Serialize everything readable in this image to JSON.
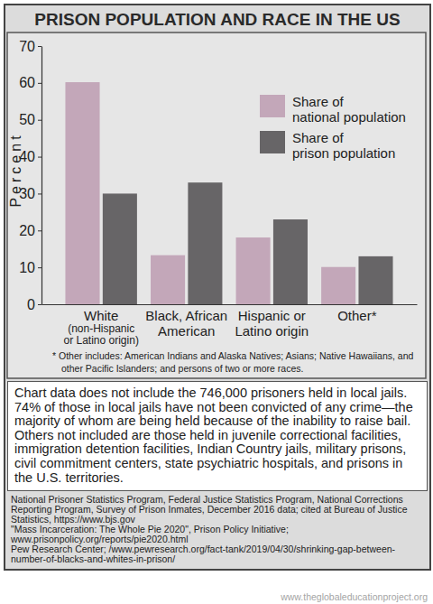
{
  "chart_data": {
    "type": "bar",
    "title": "PRISON POPULATION AND RACE IN THE US",
    "categories": [
      "White",
      "Black, African American",
      "Hispanic or Latino origin",
      "Other*"
    ],
    "category_subtitles": [
      "(non-Hispanic or Latino origin)",
      null,
      null,
      null
    ],
    "series": [
      {
        "name": "Share of national population",
        "color": "#c3a7b9",
        "values": [
          60.2,
          13.3,
          18.1,
          10.1
        ]
      },
      {
        "name": "Share of prison population",
        "color": "#676567",
        "values": [
          30,
          33,
          23,
          13
        ]
      }
    ],
    "y_label": "Percent",
    "ylim": [
      0,
      70
    ],
    "yticks": [
      0,
      10,
      20,
      30,
      40,
      50,
      60,
      70
    ],
    "grid": false,
    "legend": "top-right",
    "footnote": "* Other includes: American Indians and Alaska Natives; Asians; Native Hawaiians, and other Pacific Islanders; and persons of two or more races."
  },
  "note": "Chart data does not include the 746,000 prisoners held in local jails. 74% of those in local jails have not been convicted of any crime—the majority of whom are being held because of the inability to raise bail. Others not included are those held in juvenile correctional facilities, immigration detention facilities, Indian Country jails, military prisons, civil commitment centers, state psychiatric hospitals, and prisons in the U.S. territories.",
  "sources": [
    "National Prisoner Statistics Program, Federal Justice Statistics Program, National Corrections Reporting Program, Survey of Prison Inmates, December 2016 data; cited at Bureau of Justice Statistics, https://www.bjs.gov",
    "\"Mass Incarceration: The Whole Pie 2020\", Prison Policy Initiative; www.prisonpolicy.org/reports/pie2020.html",
    "Pew Research Center; /www.pewresearch.org/fact-tank/2019/04/30/shrinking-gap-between-number-of-blacks-and-whites-in-prison/"
  ],
  "credit": "www.theglobaleducationproject.org"
}
